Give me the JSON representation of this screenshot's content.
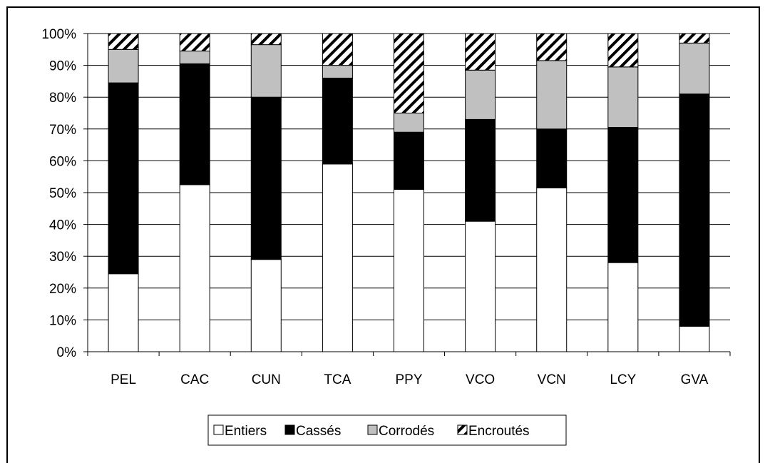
{
  "chart_data": {
    "type": "bar",
    "stacked": true,
    "percent": true,
    "categories": [
      "PEL",
      "CAC",
      "CUN",
      "TCA",
      "PPY",
      "VCO",
      "VCN",
      "LCY",
      "GVA"
    ],
    "series": [
      {
        "name": "Entiers",
        "color": "#ffffff",
        "pattern": "none",
        "values": [
          24.5,
          52.5,
          29.0,
          59.0,
          51.0,
          41.0,
          51.5,
          28.0,
          8.0
        ]
      },
      {
        "name": "Cassés",
        "color": "#000000",
        "pattern": "none",
        "values": [
          60.0,
          38.0,
          51.0,
          27.0,
          18.0,
          32.0,
          18.5,
          42.5,
          73.0
        ]
      },
      {
        "name": "Corrodés",
        "color": "#c0c0c0",
        "pattern": "none",
        "values": [
          10.5,
          4.0,
          16.5,
          4.0,
          6.0,
          15.5,
          21.5,
          19.0,
          16.0
        ]
      },
      {
        "name": "Encroutés",
        "color": "#ffffff",
        "pattern": "diagonal",
        "values": [
          5.0,
          5.5,
          3.5,
          10.0,
          25.0,
          11.5,
          8.5,
          10.5,
          3.0
        ]
      }
    ],
    "y_ticks": [
      "0%",
      "10%",
      "20%",
      "30%",
      "40%",
      "50%",
      "60%",
      "70%",
      "80%",
      "90%",
      "100%"
    ],
    "ylim": [
      0,
      100
    ],
    "grid": true,
    "legend_position": "bottom"
  }
}
